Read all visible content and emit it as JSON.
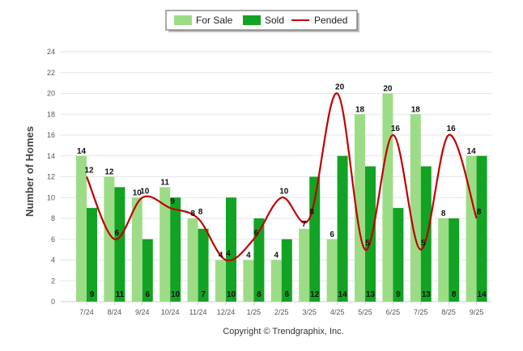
{
  "chart_data": {
    "type": "bar",
    "title": "",
    "xlabel": "",
    "ylabel": "Number of Homes",
    "ylim": [
      0,
      24
    ],
    "yticks": [
      0,
      2,
      4,
      6,
      8,
      10,
      12,
      14,
      16,
      18,
      20,
      22,
      24
    ],
    "grid": true,
    "legend_position": "top-center",
    "categories": [
      "7/24",
      "8/24",
      "9/24",
      "10/24",
      "11/24",
      "12/24",
      "1/25",
      "2/25",
      "3/25",
      "4/25",
      "5/25",
      "6/25",
      "7/25",
      "8/25",
      "9/25"
    ],
    "series": [
      {
        "name": "For Sale",
        "kind": "bar",
        "color": "#9ddc87",
        "values": [
          14,
          12,
          10,
          11,
          8,
          4,
          4,
          4,
          7,
          6,
          18,
          20,
          18,
          8,
          14
        ]
      },
      {
        "name": "Sold",
        "kind": "bar",
        "color": "#13a324",
        "values": [
          9,
          11,
          6,
          10,
          7,
          10,
          8,
          6,
          12,
          14,
          13,
          9,
          13,
          8,
          14
        ]
      },
      {
        "name": "Pended",
        "kind": "line",
        "color": "#c00000",
        "values": [
          12,
          6,
          10,
          9,
          8,
          4,
          6,
          10,
          8,
          20,
          5,
          16,
          5,
          16,
          8
        ]
      }
    ],
    "footer": "Copyright © Trendgraphix, Inc."
  }
}
